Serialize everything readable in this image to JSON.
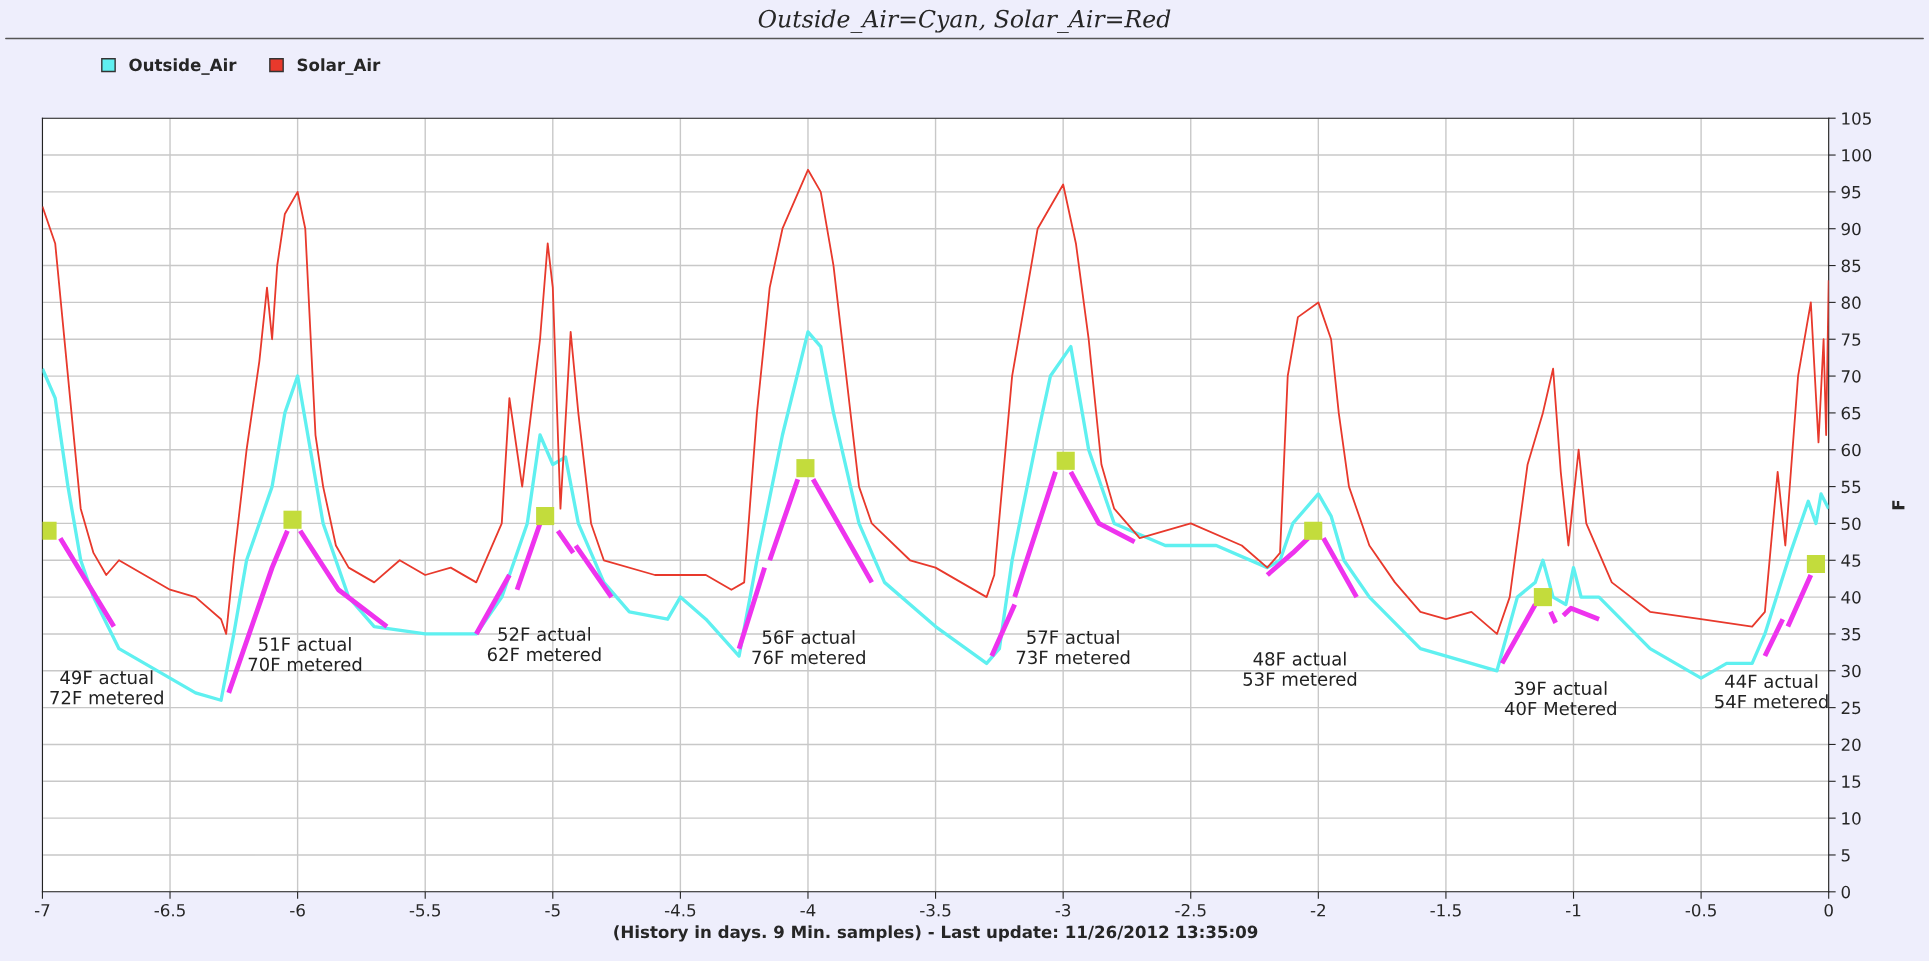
{
  "chart_data": {
    "type": "line",
    "title": "Outside_Air=Cyan, Solar_Air=Red",
    "xlabel": "(History in days. 9 Min. samples) - Last update: 11/26/2012 13:35:09",
    "ylabel": "F",
    "xlim": [
      -7,
      0
    ],
    "xticks": [
      -7,
      -6.5,
      -6,
      -5.5,
      -5,
      -4.5,
      -4,
      -3.5,
      -3,
      -2.5,
      -2,
      -1.5,
      -1,
      -0.5,
      0
    ],
    "ylim": [
      0,
      105
    ],
    "yticks": [
      0,
      5,
      10,
      15,
      20,
      25,
      30,
      35,
      40,
      45,
      50,
      55,
      60,
      65,
      70,
      75,
      80,
      85,
      90,
      95,
      100,
      105
    ],
    "grid": true,
    "legend": "top left",
    "series": [
      {
        "name": "Outside_Air",
        "color": "#5ff0f0",
        "x": [
          -7,
          -6.95,
          -6.9,
          -6.85,
          -6.8,
          -6.7,
          -6.5,
          -6.4,
          -6.3,
          -6.25,
          -6.2,
          -6.1,
          -6.05,
          -6.0,
          -5.95,
          -5.9,
          -5.8,
          -5.7,
          -5.5,
          -5.3,
          -5.2,
          -5.1,
          -5.05,
          -5.0,
          -4.95,
          -4.9,
          -4.8,
          -4.7,
          -4.55,
          -4.5,
          -4.4,
          -4.27,
          -4.2,
          -4.1,
          -4.0,
          -3.95,
          -3.9,
          -3.8,
          -3.7,
          -3.5,
          -3.3,
          -3.25,
          -3.2,
          -3.1,
          -3.05,
          -2.97,
          -2.9,
          -2.8,
          -2.6,
          -2.4,
          -2.2,
          -2.15,
          -2.1,
          -2.0,
          -1.95,
          -1.9,
          -1.8,
          -1.6,
          -1.3,
          -1.22,
          -1.15,
          -1.12,
          -1.08,
          -1.03,
          -1.0,
          -0.97,
          -0.9,
          -0.7,
          -0.5,
          -0.4,
          -0.3,
          -0.25,
          -0.15,
          -0.08,
          -0.05,
          -0.03,
          0
        ],
        "values": [
          71,
          67,
          55,
          45,
          40,
          33,
          29,
          27,
          26,
          35,
          45,
          55,
          65,
          70,
          60,
          50,
          40,
          36,
          35,
          35,
          40,
          50,
          62,
          58,
          59,
          50,
          42,
          38,
          37,
          40,
          37,
          32,
          45,
          62,
          76,
          74,
          65,
          50,
          42,
          36,
          31,
          33,
          45,
          62,
          70,
          74,
          60,
          50,
          47,
          47,
          44,
          45,
          50,
          54,
          51,
          45,
          40,
          33,
          30,
          40,
          42,
          45,
          40,
          39,
          44,
          40,
          40,
          33,
          29,
          31,
          31,
          35,
          46,
          53,
          50,
          54,
          52
        ]
      },
      {
        "name": "Solar_Air",
        "color": "#e8392c",
        "x": [
          -7,
          -6.95,
          -6.9,
          -6.85,
          -6.8,
          -6.75,
          -6.7,
          -6.6,
          -6.5,
          -6.4,
          -6.3,
          -6.28,
          -6.25,
          -6.2,
          -6.15,
          -6.12,
          -6.1,
          -6.08,
          -6.05,
          -6.0,
          -5.97,
          -5.93,
          -5.9,
          -5.85,
          -5.8,
          -5.7,
          -5.6,
          -5.5,
          -5.4,
          -5.3,
          -5.2,
          -5.17,
          -5.12,
          -5.05,
          -5.02,
          -5.0,
          -4.97,
          -4.93,
          -4.9,
          -4.85,
          -4.8,
          -4.6,
          -4.4,
          -4.3,
          -4.25,
          -4.2,
          -4.15,
          -4.1,
          -4.0,
          -3.95,
          -3.9,
          -3.85,
          -3.8,
          -3.75,
          -3.6,
          -3.5,
          -3.3,
          -3.27,
          -3.2,
          -3.15,
          -3.1,
          -3.0,
          -2.95,
          -2.9,
          -2.85,
          -2.8,
          -2.7,
          -2.5,
          -2.3,
          -2.2,
          -2.15,
          -2.12,
          -2.08,
          -2.0,
          -1.95,
          -1.92,
          -1.88,
          -1.8,
          -1.7,
          -1.6,
          -1.5,
          -1.4,
          -1.3,
          -1.25,
          -1.18,
          -1.12,
          -1.08,
          -1.05,
          -1.02,
          -0.98,
          -0.95,
          -0.85,
          -0.7,
          -0.5,
          -0.3,
          -0.25,
          -0.2,
          -0.17,
          -0.12,
          -0.07,
          -0.04,
          -0.02,
          -0.01,
          0
        ],
        "values": [
          93,
          88,
          70,
          52,
          46,
          43,
          45,
          43,
          41,
          40,
          37,
          35,
          45,
          60,
          72,
          82,
          75,
          85,
          92,
          95,
          90,
          62,
          55,
          47,
          44,
          42,
          45,
          43,
          44,
          42,
          50,
          67,
          55,
          75,
          88,
          82,
          52,
          76,
          65,
          50,
          45,
          43,
          43,
          41,
          42,
          65,
          82,
          90,
          98,
          95,
          85,
          70,
          55,
          50,
          45,
          44,
          40,
          43,
          70,
          80,
          90,
          96,
          88,
          75,
          58,
          52,
          48,
          50,
          47,
          44,
          46,
          70,
          78,
          80,
          75,
          65,
          55,
          47,
          42,
          38,
          37,
          38,
          35,
          40,
          58,
          65,
          71,
          57,
          47,
          60,
          50,
          42,
          38,
          37,
          36,
          38,
          57,
          47,
          70,
          80,
          61,
          75,
          62,
          83
        ]
      },
      {
        "type": "line",
        "color": "#ee33ee",
        "x": [
          -6.93,
          -6.72,
          null,
          -6.27,
          -6.1,
          -6.04,
          null,
          -5.99,
          -5.84,
          -5.65,
          null,
          -5.3,
          -5.17,
          null,
          -5.14,
          -5.05,
          null,
          -4.98,
          -4.92,
          null,
          -4.91,
          -4.77,
          null,
          -4.27,
          -4.17,
          null,
          -4.15,
          -4.04,
          null,
          -3.98,
          -3.75,
          null,
          -3.28,
          -3.19,
          null,
          -3.19,
          -3.03,
          null,
          -2.97,
          -2.86,
          -2.72,
          null,
          -2.2,
          -2.1,
          -2.04,
          null,
          -1.98,
          -1.85,
          null,
          -1.28,
          -1.15,
          null,
          -1.09,
          -1.07,
          null,
          -1.04,
          -1.01,
          -0.9,
          null,
          -0.25,
          -0.18,
          null,
          -0.16,
          -0.07
        ],
        "values": [
          48,
          36,
          null,
          27,
          44,
          49,
          null,
          49,
          41,
          36,
          null,
          35,
          43,
          null,
          41,
          50,
          null,
          49,
          46,
          null,
          47,
          40,
          null,
          33,
          44,
          null,
          45,
          56,
          null,
          56,
          42,
          null,
          32,
          39,
          null,
          40,
          57,
          null,
          57,
          50,
          47.5,
          null,
          43,
          46,
          48,
          null,
          48,
          40,
          null,
          31,
          39,
          null,
          38,
          36.5,
          null,
          37.5,
          38.5,
          37,
          null,
          32,
          37,
          null,
          36,
          43
        ]
      },
      {
        "type": "scatter",
        "color": "#c3dc3c",
        "marker": "square",
        "x": [
          -6.98,
          -6.02,
          -5.03,
          -4.01,
          -2.99,
          -2.02,
          -1.12,
          -0.05
        ],
        "values": [
          49,
          50.5,
          51,
          57.5,
          58.5,
          49,
          40,
          44.5
        ]
      }
    ],
    "annotations": [
      "49F actual\n72F metered",
      "51F actual\n70F metered",
      "52F actual\n62F metered",
      "56F actual\n76F metered",
      "57F actual\n73F metered",
      "48F actual\n53F metered",
      "39F actual\n40F Metered",
      "44F actual\n54F metered"
    ]
  }
}
